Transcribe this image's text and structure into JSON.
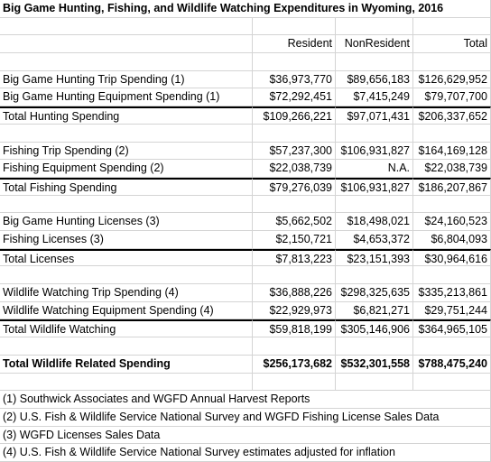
{
  "title": "Big Game Hunting, Fishing, and Wildlife Watching Expenditures in Wyoming, 2016",
  "columns": [
    "Resident",
    "NonResident",
    "Total"
  ],
  "sections": [
    {
      "rows": [
        {
          "label": "Big Game Hunting Trip Spending (1)",
          "values": [
            "$36,973,770",
            "$89,656,183",
            "$126,629,952"
          ]
        },
        {
          "label": "Big Game Hunting Equipment Spending (1)",
          "values": [
            "$72,292,451",
            "$7,415,249",
            "$79,707,700"
          ]
        },
        {
          "label": "Total Hunting Spending",
          "values": [
            "$109,266,221",
            "$97,071,431",
            "$206,337,652"
          ]
        }
      ]
    },
    {
      "rows": [
        {
          "label": "Fishing Trip Spending (2)",
          "values": [
            "$57,237,300",
            "$106,931,827",
            "$164,169,128"
          ]
        },
        {
          "label": "Fishing Equipment Spending (2)",
          "values": [
            "$22,038,739",
            "N.A.",
            "$22,038,739"
          ]
        },
        {
          "label": "Total Fishing Spending",
          "values": [
            "$79,276,039",
            "$106,931,827",
            "$186,207,867"
          ]
        }
      ]
    },
    {
      "rows": [
        {
          "label": "Big Game Hunting Licenses (3)",
          "values": [
            "$5,662,502",
            "$18,498,021",
            "$24,160,523"
          ]
        },
        {
          "label": "Fishing Licenses (3)",
          "values": [
            "$2,150,721",
            "$4,653,372",
            "$6,804,093"
          ]
        },
        {
          "label": "Total Licenses",
          "values": [
            "$7,813,223",
            "$23,151,393",
            "$30,964,616"
          ]
        }
      ]
    },
    {
      "rows": [
        {
          "label": "Wildlife Watching Trip Spending (4)",
          "values": [
            "$36,888,226",
            "$298,325,635",
            "$335,213,861"
          ]
        },
        {
          "label": "Wildlife Watching Equipment Spending (4)",
          "values": [
            "$22,929,973",
            "$6,821,271",
            "$29,751,244"
          ]
        },
        {
          "label": "Total Wildlife Watching",
          "values": [
            "$59,818,199",
            "$305,146,906",
            "$364,965,105"
          ]
        }
      ]
    }
  ],
  "grand_total": {
    "label": "Total Wildlife Related Spending",
    "values": [
      "$256,173,682",
      "$532,301,558",
      "$788,475,240"
    ]
  },
  "notes": [
    "(1) Southwick Associates and WGFD Annual Harvest Reports",
    "(2) U.S. Fish & Wildlife Service National Survey and WGFD Fishing License Sales Data",
    "(3) WGFD Licenses Sales Data",
    "(4) U.S. Fish & Wildlife Service National Survey estimates adjusted for inflation"
  ]
}
